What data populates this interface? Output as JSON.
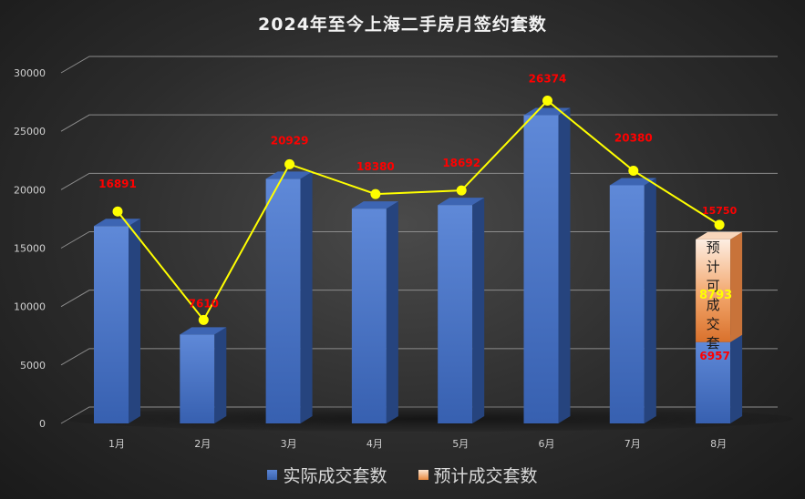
{
  "chart_data": {
    "type": "bar",
    "title": "2024年至今上海二手房月签约套数",
    "categories": [
      "1月",
      "2月",
      "3月",
      "4月",
      "5月",
      "6月",
      "7月",
      "8月"
    ],
    "series": [
      {
        "name": "实际成交套数",
        "type": "bar",
        "values": [
          16891,
          7610,
          20929,
          18380,
          18692,
          26374,
          20380,
          6957
        ],
        "color": "#4472c4"
      },
      {
        "name": "预计成交套数",
        "type": "bar-stacked",
        "values": [
          null,
          null,
          null,
          null,
          null,
          null,
          null,
          8793
        ],
        "color": "#f4b183"
      },
      {
        "type": "line",
        "values": [
          16891,
          7610,
          20929,
          18380,
          18692,
          26374,
          20380,
          15750
        ],
        "color": "#ffff00"
      }
    ],
    "data_labels": [
      "16891",
      "7610",
      "20929",
      "18380",
      "18692",
      "26374",
      "20380",
      "15750"
    ],
    "stack_labels": {
      "actual": "6957",
      "forecast": "8793",
      "forecast_caption": "预计可成交套"
    },
    "y_ticks": [
      "0",
      "5000",
      "10000",
      "15000",
      "20000",
      "25000",
      "30000"
    ],
    "ylim": [
      0,
      30000
    ],
    "grid": true,
    "legend_position": "bottom",
    "colors": {
      "bar": "#4472c4",
      "forecast": "#f4b183",
      "line": "#ffff00",
      "label": "#ff0000",
      "grid": "#8c8c8c"
    }
  }
}
